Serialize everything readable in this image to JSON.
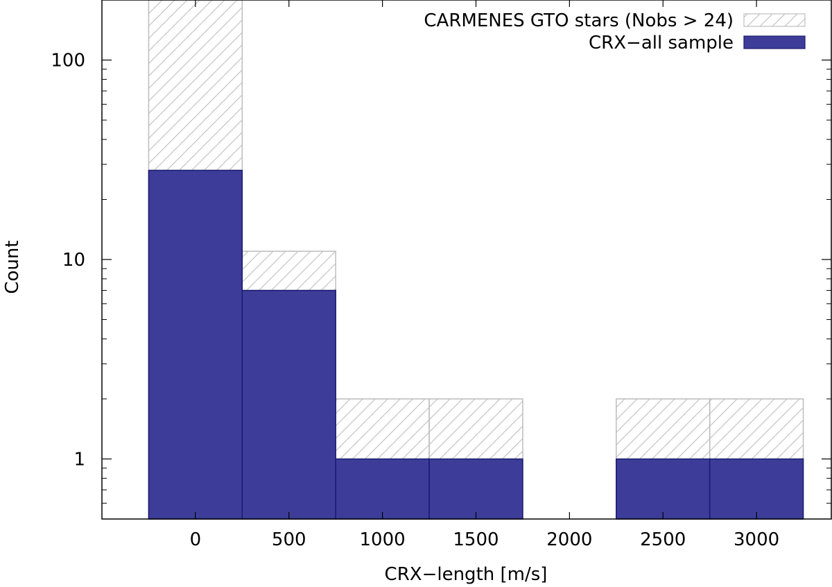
{
  "chart_data": {
    "type": "bar",
    "title": "",
    "xlabel": "CRX−length [m/s]",
    "ylabel": "Count",
    "yscale": "log",
    "ylim": [
      0.5,
      200
    ],
    "xlim": [
      -500,
      3400
    ],
    "bin_width": 500,
    "x_ticks": [
      "0",
      "500",
      "1000",
      "1500",
      "2000",
      "2500",
      "3000"
    ],
    "y_ticks": [
      "1",
      "10",
      "100"
    ],
    "legend_position": "top-right",
    "x": [
      0,
      500,
      1000,
      1500,
      2000,
      2500,
      3000
    ],
    "series": [
      {
        "name": "CARMENES GTO stars (Nobs > 24)",
        "values": [
          200,
          11,
          2,
          2,
          0,
          2,
          2
        ],
        "style": "hatched",
        "color": "#bdbdbd"
      },
      {
        "name": "CRX−all sample",
        "values": [
          28,
          7,
          1,
          1,
          0,
          1,
          1
        ],
        "style": "filled",
        "color": "#3d3d99"
      }
    ]
  }
}
